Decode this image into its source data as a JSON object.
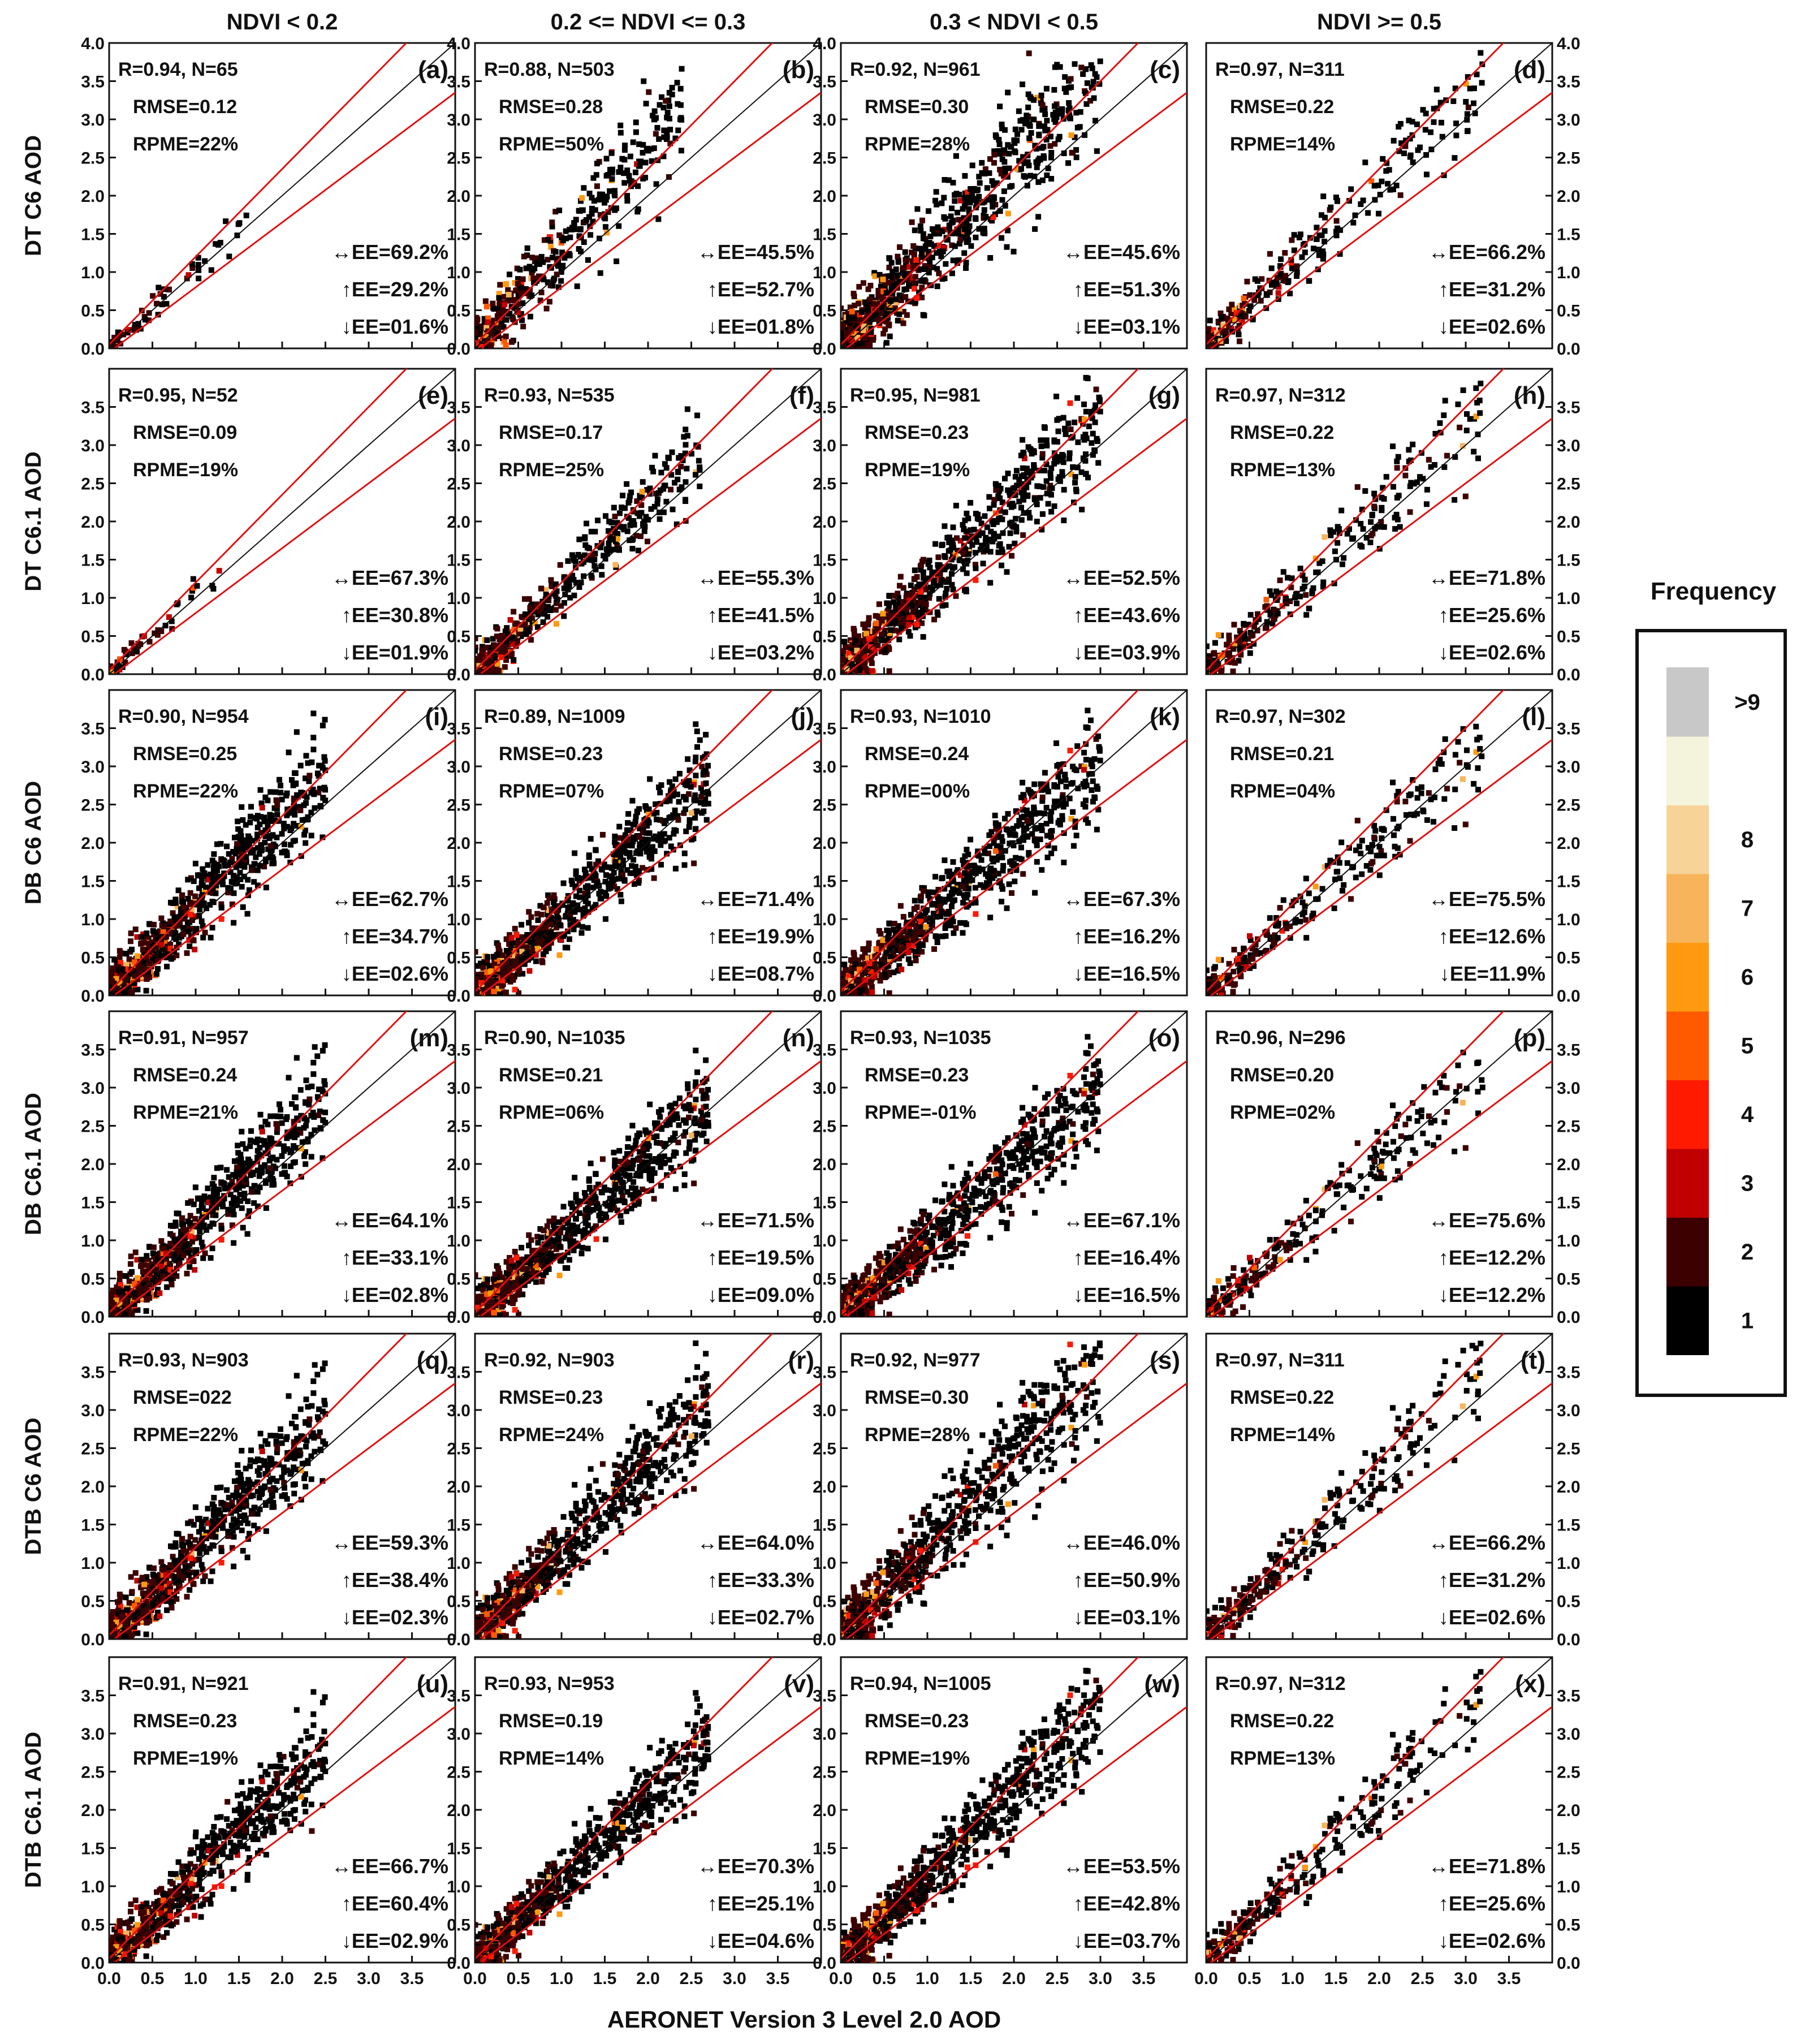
{
  "figure": {
    "xlabel": "AERONET Version 3 Level 2.0 AOD",
    "col_titles": [
      "NDVI < 0.2",
      "0.2 <= NDVI <= 0.3",
      "0.3 < NDVI < 0.5",
      "NDVI >= 0.5"
    ],
    "row_labels": [
      "DT C6 AOD",
      "DT C6.1 AOD",
      "DB C6 AOD",
      "DB C6.1 AOD",
      "DTB C6 AOD",
      "DTB C6.1 AOD"
    ],
    "x_ticks": [
      "0.0",
      "0.5",
      "1.0",
      "1.5",
      "2.0",
      "2.5",
      "3.0",
      "3.5"
    ],
    "y_ticks_first": [
      "0.0",
      "0.5",
      "1.0",
      "1.5",
      "2.0",
      "2.5",
      "3.0",
      "3.5",
      "4.0"
    ],
    "y_ticks": [
      "0.0",
      "0.5",
      "1.0",
      "1.5",
      "2.0",
      "2.5",
      "3.0",
      "3.5"
    ]
  },
  "legend": {
    "title": "Frequency",
    "bins": [
      {
        "label": "1",
        "color": "#000000"
      },
      {
        "label": "2",
        "color": "#3d0000"
      },
      {
        "label": "3",
        "color": "#c00000"
      },
      {
        "label": "4",
        "color": "#ff1a00"
      },
      {
        "label": "5",
        "color": "#ff5a00"
      },
      {
        "label": "6",
        "color": "#ff9a10"
      },
      {
        "label": "7",
        "color": "#f7b45a"
      },
      {
        "label": "8",
        "color": "#f8d398"
      },
      {
        "label": "",
        "color": "#f4f4dc"
      },
      {
        "label": ">9",
        "color": "#c8c8c8"
      }
    ]
  },
  "chart_data": {
    "type": "scatter",
    "xlim": [
      0,
      4
    ],
    "ylim": [
      0,
      4
    ],
    "reference_lines": [
      "1:1 line",
      "expected error envelope (upper)",
      "expected error envelope (lower)"
    ],
    "panels": [
      {
        "id": "(a)",
        "row": 0,
        "col": 0,
        "stats": [
          "R=0.94, N=65",
          "RMSE=0.12",
          "RPME=22%"
        ],
        "ee": [
          "↔EE=69.2%",
          "↑EE=29.2%",
          "↓EE=01.6%"
        ],
        "n": 65,
        "spread": 0.12,
        "bias": 1.08,
        "xmax": 1.6
      },
      {
        "id": "(b)",
        "row": 0,
        "col": 1,
        "stats": [
          "R=0.88, N=503",
          "RMSE=0.28",
          "RPME=50%"
        ],
        "ee": [
          "↔EE=45.5%",
          "↑EE=52.7%",
          "↓EE=01.8%"
        ],
        "n": 503,
        "spread": 0.28,
        "bias": 1.3,
        "xmax": 2.4
      },
      {
        "id": "(c)",
        "row": 0,
        "col": 2,
        "stats": [
          "R=0.92, N=961",
          "RMSE=0.30",
          "RPME=28%"
        ],
        "ee": [
          "↔EE=45.6%",
          "↑EE=51.3%",
          "↓EE=03.1%"
        ],
        "n": 961,
        "spread": 0.3,
        "bias": 1.22,
        "xmax": 3.0
      },
      {
        "id": "(d)",
        "row": 0,
        "col": 3,
        "stats": [
          "R=0.97, N=311",
          "RMSE=0.22",
          "RPME=14%"
        ],
        "ee": [
          "↔EE=66.2%",
          "↑EE=31.2%",
          "↓EE=02.6%"
        ],
        "n": 311,
        "spread": 0.2,
        "bias": 1.1,
        "xmax": 3.2
      },
      {
        "id": "(e)",
        "row": 1,
        "col": 0,
        "stats": [
          "R=0.95, N=52",
          "RMSE=0.09",
          "RPME=19%"
        ],
        "ee": [
          "↔EE=67.3%",
          "↑EE=30.8%",
          "↓EE=01.9%"
        ],
        "n": 52,
        "spread": 0.09,
        "bias": 1.06,
        "xmax": 1.3
      },
      {
        "id": "(f)",
        "row": 1,
        "col": 1,
        "stats": [
          "R=0.93, N=535",
          "RMSE=0.17",
          "RPME=25%"
        ],
        "ee": [
          "↔EE=55.3%",
          "↑EE=41.5%",
          "↓EE=03.2%"
        ],
        "n": 535,
        "spread": 0.18,
        "bias": 1.12,
        "xmax": 2.6
      },
      {
        "id": "(g)",
        "row": 1,
        "col": 2,
        "stats": [
          "R=0.95, N=981",
          "RMSE=0.23",
          "RPME=19%"
        ],
        "ee": [
          "↔EE=52.5%",
          "↑EE=43.6%",
          "↓EE=03.9%"
        ],
        "n": 981,
        "spread": 0.24,
        "bias": 1.12,
        "xmax": 3.0
      },
      {
        "id": "(h)",
        "row": 1,
        "col": 3,
        "stats": [
          "R=0.97, N=312",
          "RMSE=0.22",
          "RPME=13%"
        ],
        "ee": [
          "↔EE=71.8%",
          "↑EE=25.6%",
          "↓EE=02.6%"
        ],
        "n": 312,
        "spread": 0.2,
        "bias": 1.08,
        "xmax": 3.2
      },
      {
        "id": "(i)",
        "row": 2,
        "col": 0,
        "stats": [
          "R=0.90, N=954",
          "RMSE=0.25",
          "RPME=22%"
        ],
        "ee": [
          "↔EE=62.7%",
          "↑EE=34.7%",
          "↓EE=02.6%"
        ],
        "n": 954,
        "spread": 0.25,
        "bias": 1.15,
        "xmax": 2.5
      },
      {
        "id": "(j)",
        "row": 2,
        "col": 1,
        "stats": [
          "R=0.89, N=1009",
          "RMSE=0.23",
          "RPME=07%"
        ],
        "ee": [
          "↔EE=71.4%",
          "↑EE=19.9%",
          "↓EE=08.7%"
        ],
        "n": 1009,
        "spread": 0.22,
        "bias": 1.04,
        "xmax": 2.7
      },
      {
        "id": "(k)",
        "row": 2,
        "col": 2,
        "stats": [
          "R=0.93, N=1010",
          "RMSE=0.24",
          "RPME=00%"
        ],
        "ee": [
          "↔EE=67.3%",
          "↑EE=16.2%",
          "↓EE=16.5%"
        ],
        "n": 1010,
        "spread": 0.23,
        "bias": 1.0,
        "xmax": 3.0
      },
      {
        "id": "(l)",
        "row": 2,
        "col": 3,
        "stats": [
          "R=0.97, N=302",
          "RMSE=0.21",
          "RPME=04%"
        ],
        "ee": [
          "↔EE=75.5%",
          "↑EE=12.6%",
          "↓EE=11.9%"
        ],
        "n": 302,
        "spread": 0.18,
        "bias": 1.02,
        "xmax": 3.2
      },
      {
        "id": "(m)",
        "row": 3,
        "col": 0,
        "stats": [
          "R=0.91, N=957",
          "RMSE=0.24",
          "RPME=21%"
        ],
        "ee": [
          "↔EE=64.1%",
          "↑EE=33.1%",
          "↓EE=02.8%"
        ],
        "n": 957,
        "spread": 0.24,
        "bias": 1.14,
        "xmax": 2.5
      },
      {
        "id": "(n)",
        "row": 3,
        "col": 1,
        "stats": [
          "R=0.90, N=1035",
          "RMSE=0.21",
          "RPME=06%"
        ],
        "ee": [
          "↔EE=71.5%",
          "↑EE=19.5%",
          "↓EE=09.0%"
        ],
        "n": 1035,
        "spread": 0.21,
        "bias": 1.03,
        "xmax": 2.7
      },
      {
        "id": "(o)",
        "row": 3,
        "col": 2,
        "stats": [
          "R=0.93, N=1035",
          "RMSE=0.23",
          "RPME=-01%"
        ],
        "ee": [
          "↔EE=67.1%",
          "↑EE=16.4%",
          "↓EE=16.5%"
        ],
        "n": 1035,
        "spread": 0.22,
        "bias": 0.99,
        "xmax": 3.0
      },
      {
        "id": "(p)",
        "row": 3,
        "col": 3,
        "stats": [
          "R=0.96, N=296",
          "RMSE=0.20",
          "RPME=02%"
        ],
        "ee": [
          "↔EE=75.6%",
          "↑EE=12.2%",
          "↓EE=12.2%"
        ],
        "n": 296,
        "spread": 0.18,
        "bias": 1.01,
        "xmax": 3.2
      },
      {
        "id": "(q)",
        "row": 4,
        "col": 0,
        "stats": [
          "R=0.93, N=903",
          "RMSE=022",
          "RPME=22%"
        ],
        "ee": [
          "↔EE=59.3%",
          "↑EE=38.4%",
          "↓EE=02.3%"
        ],
        "n": 903,
        "spread": 0.25,
        "bias": 1.15,
        "xmax": 2.5
      },
      {
        "id": "(r)",
        "row": 4,
        "col": 1,
        "stats": [
          "R=0.92, N=903",
          "RMSE=0.23",
          "RPME=24%"
        ],
        "ee": [
          "↔EE=64.0%",
          "↑EE=33.3%",
          "↓EE=02.7%"
        ],
        "n": 903,
        "spread": 0.23,
        "bias": 1.15,
        "xmax": 2.7
      },
      {
        "id": "(s)",
        "row": 4,
        "col": 2,
        "stats": [
          "R=0.92, N=977",
          "RMSE=0.30",
          "RPME=28%"
        ],
        "ee": [
          "↔EE=46.0%",
          "↑EE=50.9%",
          "↓EE=03.1%"
        ],
        "n": 977,
        "spread": 0.28,
        "bias": 1.2,
        "xmax": 3.0
      },
      {
        "id": "(t)",
        "row": 4,
        "col": 3,
        "stats": [
          "R=0.97, N=311",
          "RMSE=0.22",
          "RPME=14%"
        ],
        "ee": [
          "↔EE=66.2%",
          "↑EE=31.2%",
          "↓EE=02.6%"
        ],
        "n": 311,
        "spread": 0.2,
        "bias": 1.1,
        "xmax": 3.2
      },
      {
        "id": "(u)",
        "row": 5,
        "col": 0,
        "stats": [
          "R=0.91, N=921",
          "RMSE=0.23",
          "RPME=19%"
        ],
        "ee": [
          "↔EE=66.7%",
          "↑EE=60.4%",
          "↓EE=02.9%"
        ],
        "n": 921,
        "spread": 0.23,
        "bias": 1.12,
        "xmax": 2.5
      },
      {
        "id": "(v)",
        "row": 5,
        "col": 1,
        "stats": [
          "R=0.93, N=953",
          "RMSE=0.19",
          "RPME=14%"
        ],
        "ee": [
          "↔EE=70.3%",
          "↑EE=25.1%",
          "↓EE=04.6%"
        ],
        "n": 953,
        "spread": 0.19,
        "bias": 1.08,
        "xmax": 2.7
      },
      {
        "id": "(w)",
        "row": 5,
        "col": 2,
        "stats": [
          "R=0.94, N=1005",
          "RMSE=0.23",
          "RPME=19%"
        ],
        "ee": [
          "↔EE=53.5%",
          "↑EE=42.8%",
          "↓EE=03.7%"
        ],
        "n": 1005,
        "spread": 0.22,
        "bias": 1.12,
        "xmax": 3.0
      },
      {
        "id": "(x)",
        "row": 5,
        "col": 3,
        "stats": [
          "R=0.97, N=312",
          "RMSE=0.22",
          "RPME=13%"
        ],
        "ee": [
          "↔EE=71.8%",
          "↑EE=25.6%",
          "↓EE=02.6%"
        ],
        "n": 312,
        "spread": 0.2,
        "bias": 1.08,
        "xmax": 3.2
      }
    ]
  }
}
